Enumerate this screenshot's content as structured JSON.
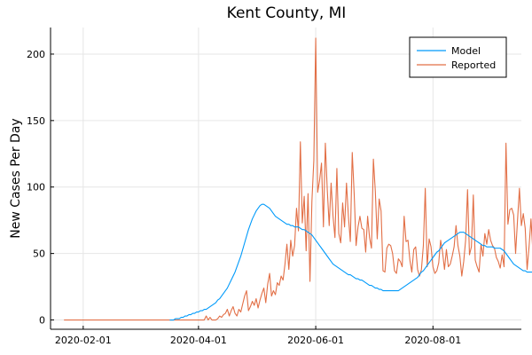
{
  "chart_data": {
    "type": "line",
    "title": "Kent County, MI",
    "xlabel": "",
    "ylabel": "New Cases Per Day",
    "x_start": "2020-01-22",
    "xlim": [
      "2020-01-15",
      "2020-09-16"
    ],
    "ylim": [
      -7,
      220
    ],
    "x_ticks": [
      {
        "date": "2020-02-01",
        "label": "2020-02-01"
      },
      {
        "date": "2020-04-01",
        "label": "2020-04-01"
      },
      {
        "date": "2020-06-01",
        "label": "2020-06-01"
      },
      {
        "date": "2020-08-01",
        "label": "2020-08-01"
      }
    ],
    "y_ticks": [
      0,
      50,
      100,
      150,
      200
    ],
    "grid": true,
    "legend_position": "top-right",
    "series": [
      {
        "name": "Model",
        "color": "#009AFA",
        "x_start": "2020-03-17",
        "values": [
          0,
          0,
          0,
          1,
          1,
          1,
          2,
          2,
          3,
          3,
          4,
          4,
          5,
          5,
          6,
          6,
          7,
          7,
          8,
          8,
          9,
          10,
          11,
          12,
          13,
          15,
          16,
          18,
          20,
          22,
          24,
          27,
          30,
          33,
          36,
          40,
          44,
          48,
          53,
          58,
          63,
          68,
          72,
          76,
          79,
          82,
          84,
          86,
          87,
          87,
          86,
          85,
          84,
          82,
          80,
          78,
          77,
          76,
          75,
          74,
          73,
          72,
          72,
          71,
          71,
          70,
          70,
          70,
          69,
          68,
          68,
          67,
          66,
          65,
          64,
          62,
          60,
          58,
          56,
          54,
          52,
          50,
          48,
          46,
          44,
          42,
          41,
          40,
          39,
          38,
          37,
          36,
          35,
          34,
          34,
          33,
          32,
          31,
          31,
          30,
          30,
          29,
          28,
          27,
          26,
          26,
          25,
          24,
          24,
          23,
          23,
          22,
          22,
          22,
          22,
          22,
          22,
          22,
          22,
          22,
          23,
          24,
          25,
          26,
          27,
          28,
          29,
          30,
          31,
          32,
          34,
          36,
          37,
          39,
          41,
          43,
          45,
          47,
          49,
          51,
          52,
          54,
          56,
          58,
          59,
          60,
          61,
          62,
          63,
          64,
          65,
          66,
          66,
          66,
          65,
          64,
          63,
          62,
          61,
          60,
          59,
          58,
          57,
          56,
          56,
          55,
          55,
          55,
          55,
          54,
          54,
          54,
          54,
          53,
          52,
          50,
          48,
          46,
          44,
          42,
          41,
          40,
          39,
          38,
          37,
          37,
          36,
          36,
          36,
          36,
          36,
          36,
          37,
          38,
          39,
          40,
          41,
          42,
          44,
          46,
          48,
          49,
          50,
          50,
          49,
          48,
          47,
          45,
          43,
          41,
          40,
          40,
          39,
          39,
          39,
          39,
          40,
          40,
          41,
          43,
          44
        ]
      },
      {
        "name": "Reported",
        "color": "#E26F46",
        "x_start": "2020-01-22",
        "values": [
          0,
          0,
          0,
          0,
          0,
          0,
          0,
          0,
          0,
          0,
          0,
          0,
          0,
          0,
          0,
          0,
          0,
          0,
          0,
          0,
          0,
          0,
          0,
          0,
          0,
          0,
          0,
          0,
          0,
          0,
          0,
          0,
          0,
          0,
          0,
          0,
          0,
          0,
          0,
          0,
          0,
          0,
          0,
          0,
          0,
          0,
          0,
          0,
          0,
          0,
          0,
          0,
          0,
          0,
          0,
          0,
          0,
          0,
          0,
          0,
          0,
          0,
          0,
          0,
          0,
          0,
          0,
          0,
          0,
          0,
          0,
          0,
          0,
          0,
          3,
          0,
          2,
          0,
          0,
          0,
          1,
          3,
          2,
          4,
          5,
          8,
          3,
          7,
          10,
          5,
          3,
          8,
          6,
          12,
          18,
          22,
          7,
          10,
          14,
          11,
          16,
          9,
          15,
          20,
          24,
          13,
          27,
          35,
          18,
          22,
          19,
          28,
          26,
          33,
          30,
          42,
          57,
          38,
          60,
          48,
          56,
          84,
          67,
          134,
          73,
          93,
          52,
          95,
          29,
          89,
          120,
          212,
          96,
          105,
          118,
          70,
          133,
          98,
          71,
          103,
          78,
          62,
          114,
          65,
          58,
          88,
          70,
          103,
          78,
          59,
          126,
          95,
          56,
          70,
          78,
          69,
          68,
          51,
          78,
          62,
          54,
          121,
          97,
          61,
          91,
          82,
          37,
          36,
          54,
          57,
          56,
          50,
          37,
          35,
          46,
          44,
          40,
          78,
          59,
          60,
          45,
          36,
          53,
          55,
          38,
          33,
          38,
          56,
          99,
          40,
          61,
          55,
          40,
          35,
          37,
          43,
          60,
          51,
          38,
          53,
          40,
          42,
          48,
          55,
          71,
          56,
          48,
          33,
          44,
          60,
          98,
          49,
          55,
          94,
          45,
          40,
          36,
          57,
          48,
          65,
          57,
          68,
          60,
          56,
          54,
          47,
          44,
          39,
          49,
          40,
          133,
          72,
          83,
          84,
          79,
          50,
          75,
          99,
          71,
          80,
          69,
          38,
          55,
          76,
          51,
          58,
          61,
          77,
          49,
          67,
          60,
          94,
          40,
          60,
          81,
          66,
          74,
          52,
          43,
          50,
          61,
          34,
          55,
          43,
          48,
          39,
          52,
          58,
          49,
          41,
          33,
          50,
          61,
          30,
          40,
          58,
          55,
          36,
          60,
          45,
          48,
          31,
          42,
          55,
          0,
          57,
          63,
          53,
          64,
          61,
          48,
          39,
          44,
          45,
          62,
          0,
          60,
          42,
          60,
          40,
          50,
          61,
          28,
          51,
          35,
          56,
          57,
          59,
          36,
          44,
          66,
          68,
          54,
          76,
          55,
          43,
          71,
          58,
          0,
          114
        ]
      }
    ]
  }
}
